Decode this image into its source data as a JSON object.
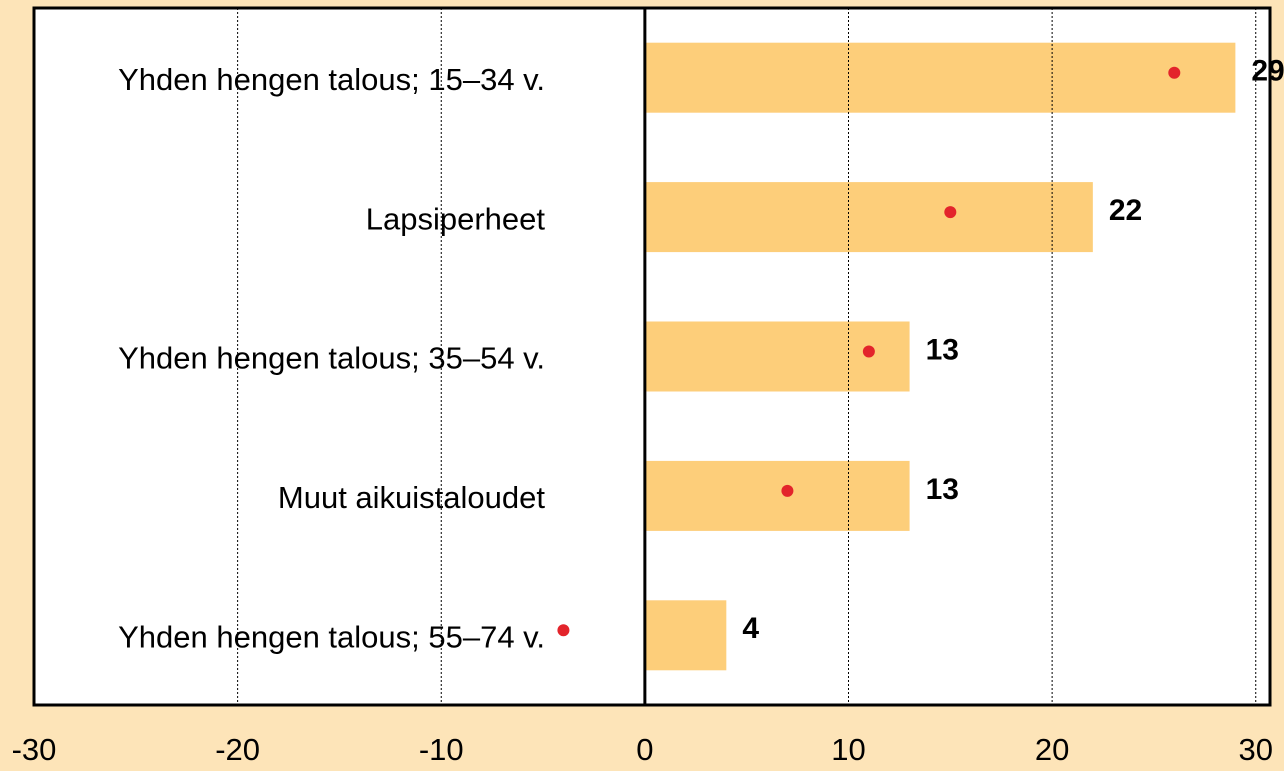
{
  "chart_data": {
    "type": "hbar",
    "categories": [
      "Yhden hengen talous; 15–34 v.",
      "Lapsiperheet",
      "Yhden hengen talous; 35–54 v.",
      "Muut aikuistaloudet",
      "Yhden hengen talous; 55–74 v."
    ],
    "values": [
      29,
      22,
      13,
      13,
      4
    ],
    "color": "#fdce7a",
    "markers": {
      "color": "#e3242b",
      "values": [
        26,
        15,
        11,
        7,
        -4
      ]
    },
    "xlim": [
      -30,
      30.7
    ],
    "xticks": [
      -30,
      -20,
      -10,
      0,
      10,
      20,
      30
    ],
    "grid": true
  }
}
